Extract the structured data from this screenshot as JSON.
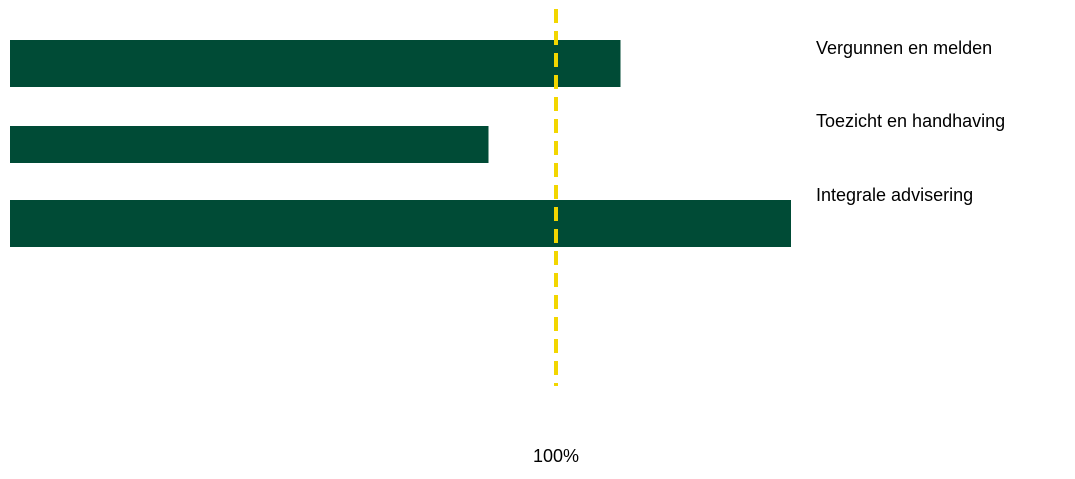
{
  "chart_data": {
    "type": "bar",
    "orientation": "horizontal",
    "categories": [
      "Vergunnen en melden",
      "Toezicht en handhaving",
      "Integrale advisering"
    ],
    "values": [
      111,
      87,
      142
    ],
    "reference_line": {
      "value": 100,
      "label": "100%",
      "style": "dashed"
    },
    "xlim": [
      0,
      142
    ],
    "grid": false,
    "legend": "none",
    "colors": {
      "bar": "#004b36",
      "reference": "#f2d600",
      "text": "#000000"
    }
  }
}
